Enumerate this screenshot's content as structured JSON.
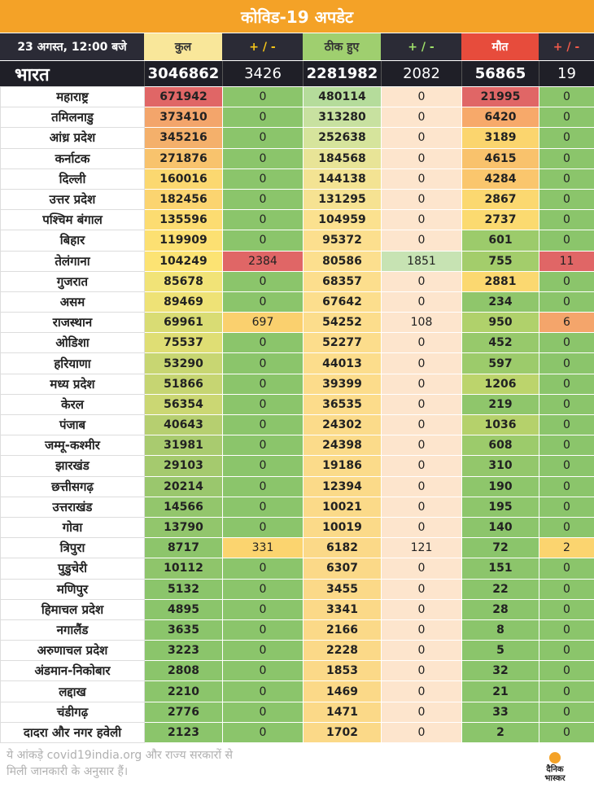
{
  "title": "कोविड-19 अपडेट",
  "header": {
    "date": "23 अगस्त, 12:00 बजे",
    "total": "कुल",
    "pm1": "+ / -",
    "recovered": "ठीक हुए",
    "pm2": "+ / -",
    "deaths": "मौत",
    "pm3": "+ / -"
  },
  "india": {
    "name": "भारत",
    "total": "3046862",
    "total_delta": "3426",
    "recovered": "2281982",
    "recovered_delta": "2082",
    "deaths": "56865",
    "deaths_delta": "19"
  },
  "rows": [
    {
      "state": "महाराष्ट्र",
      "total": "671942",
      "td": "0",
      "rec": "480114",
      "rd": "0",
      "death": "21995",
      "dd": "0",
      "ct": "#e06666",
      "ctd": "#8bc56b",
      "cr": "#b5dc9b",
      "crd": "#fde5cd",
      "cde": "#e06666",
      "cdd": "#8bc56b"
    },
    {
      "state": "तमिलनाडु",
      "total": "373410",
      "td": "0",
      "rec": "313280",
      "rd": "0",
      "death": "6420",
      "dd": "0",
      "ct": "#f3a56b",
      "ctd": "#8bc56b",
      "cr": "#c8e1a0",
      "crd": "#fde5cd",
      "cde": "#f7a96a",
      "cdd": "#8bc56b"
    },
    {
      "state": "आंध्र प्रदेश",
      "total": "345216",
      "td": "0",
      "rec": "252638",
      "rd": "0",
      "death": "3189",
      "dd": "0",
      "ct": "#f4b06b",
      "ctd": "#8bc56b",
      "cr": "#d6e49c",
      "crd": "#fde5cd",
      "cde": "#fbd56e",
      "cdd": "#8bc56b"
    },
    {
      "state": "कर्नाटक",
      "total": "271876",
      "td": "0",
      "rec": "184568",
      "rd": "0",
      "death": "4615",
      "dd": "0",
      "ct": "#f8c36d",
      "ctd": "#8bc56b",
      "cr": "#e8e497",
      "crd": "#fde5cd",
      "cde": "#f9c26c",
      "cdd": "#8bc56b"
    },
    {
      "state": "दिल्ली",
      "total": "160016",
      "td": "0",
      "rec": "144138",
      "rd": "0",
      "death": "4284",
      "dd": "0",
      "ct": "#fbd870",
      "ctd": "#8bc56b",
      "cr": "#f3e393",
      "crd": "#fde5cd",
      "cde": "#fac66d",
      "cdd": "#8bc56b"
    },
    {
      "state": "उत्तर प्रदेश",
      "total": "182456",
      "td": "0",
      "rec": "131295",
      "rd": "0",
      "death": "2867",
      "dd": "0",
      "ct": "#fbd470",
      "ctd": "#8bc56b",
      "cr": "#f6e292",
      "crd": "#fde5cd",
      "cde": "#fbd870",
      "cdd": "#8bc56b"
    },
    {
      "state": "पश्चिम बंगाल",
      "total": "135596",
      "td": "0",
      "rec": "104959",
      "rd": "0",
      "death": "2737",
      "dd": "0",
      "ct": "#fcdc71",
      "ctd": "#8bc56b",
      "cr": "#fbe18f",
      "crd": "#fde5cd",
      "cde": "#fbda70",
      "cdd": "#8bc56b"
    },
    {
      "state": "बिहार",
      "total": "119909",
      "td": "0",
      "rec": "95372",
      "rd": "0",
      "death": "601",
      "dd": "0",
      "ct": "#fce072",
      "ctd": "#8bc56b",
      "cr": "#fcdf8e",
      "crd": "#fde5cd",
      "cde": "#9ccb6b",
      "cdd": "#8bc56b"
    },
    {
      "state": "तेलंगाना",
      "total": "104249",
      "td": "2384",
      "rec": "80586",
      "rd": "1851",
      "death": "755",
      "dd": "11",
      "ct": "#fce373",
      "ctd": "#e06666",
      "cr": "#fcdf8e",
      "crd": "#c7e3b3",
      "cde": "#a3cd6b",
      "cdd": "#e06666"
    },
    {
      "state": "गुजरात",
      "total": "85678",
      "td": "0",
      "rec": "68357",
      "rd": "0",
      "death": "2881",
      "dd": "0",
      "ct": "#f1e377",
      "ctd": "#8bc56b",
      "cr": "#fcde8d",
      "crd": "#fde5cd",
      "cde": "#fbd870",
      "cdd": "#8bc56b"
    },
    {
      "state": "असम",
      "total": "89469",
      "td": "0",
      "rec": "67642",
      "rd": "0",
      "death": "234",
      "dd": "0",
      "ct": "#eee276",
      "ctd": "#8bc56b",
      "cr": "#fcde8d",
      "crd": "#fde5cd",
      "cde": "#8fc66b",
      "cdd": "#8bc56b"
    },
    {
      "state": "राजस्थान",
      "total": "69961",
      "td": "697",
      "rec": "54252",
      "rd": "108",
      "death": "950",
      "dd": "6",
      "ct": "#d9dc74",
      "ctd": "#fad06e",
      "cr": "#fcdd8c",
      "crd": "#fde5cd",
      "cde": "#b0d16b",
      "cdd": "#f4a56b"
    },
    {
      "state": "ओडिशा",
      "total": "75537",
      "td": "0",
      "rec": "52277",
      "rd": "0",
      "death": "452",
      "dd": "0",
      "ct": "#dfde74",
      "ctd": "#8bc56b",
      "cr": "#fcdd8c",
      "crd": "#fde5cd",
      "cde": "#97c96b",
      "cdd": "#8bc56b"
    },
    {
      "state": "हरियाणा",
      "total": "53290",
      "td": "0",
      "rec": "44013",
      "rd": "0",
      "death": "597",
      "dd": "0",
      "ct": "#c8d672",
      "ctd": "#8bc56b",
      "cr": "#fcdd8c",
      "crd": "#fde5cd",
      "cde": "#9ccb6b",
      "cdd": "#8bc56b"
    },
    {
      "state": "मध्य प्रदेश",
      "total": "51866",
      "td": "0",
      "rec": "39399",
      "rd": "0",
      "death": "1206",
      "dd": "0",
      "ct": "#c6d572",
      "ctd": "#8bc56b",
      "cr": "#fcdc8b",
      "crd": "#fde5cd",
      "cde": "#bcd46c",
      "cdd": "#8bc56b"
    },
    {
      "state": "केरल",
      "total": "56354",
      "td": "0",
      "rec": "36535",
      "rd": "0",
      "death": "219",
      "dd": "0",
      "ct": "#cbd773",
      "ctd": "#8bc56b",
      "cr": "#fcdc8b",
      "crd": "#fde5cd",
      "cde": "#8fc66b",
      "cdd": "#8bc56b"
    },
    {
      "state": "पंजाब",
      "total": "40643",
      "td": "0",
      "rec": "24302",
      "rd": "0",
      "death": "1036",
      "dd": "0",
      "ct": "#b6cf70",
      "ctd": "#8bc56b",
      "cr": "#fbdb8a",
      "crd": "#fde5cd",
      "cde": "#b5d16b",
      "cdd": "#8bc56b"
    },
    {
      "state": "जम्मू-कश्मीर",
      "total": "31981",
      "td": "0",
      "rec": "24398",
      "rd": "0",
      "death": "608",
      "dd": "0",
      "ct": "#a9cb6f",
      "ctd": "#8bc56b",
      "cr": "#fbdb8a",
      "crd": "#fde5cd",
      "cde": "#9ccb6b",
      "cdd": "#8bc56b"
    },
    {
      "state": "झारखंड",
      "total": "29103",
      "td": "0",
      "rec": "19186",
      "rd": "0",
      "death": "310",
      "dd": "0",
      "ct": "#a5ca6e",
      "ctd": "#8bc56b",
      "cr": "#fbdb8a",
      "crd": "#fde5cd",
      "cde": "#93c76b",
      "cdd": "#8bc56b"
    },
    {
      "state": "छत्तीसगढ़",
      "total": "20214",
      "td": "0",
      "rec": "12394",
      "rd": "0",
      "death": "190",
      "dd": "0",
      "ct": "#9ac76d",
      "ctd": "#8bc56b",
      "cr": "#fbda89",
      "crd": "#fde5cd",
      "cde": "#8ec66b",
      "cdd": "#8bc56b"
    },
    {
      "state": "उत्तराखंड",
      "total": "14566",
      "td": "0",
      "rec": "10021",
      "rd": "0",
      "death": "195",
      "dd": "0",
      "ct": "#93c66c",
      "ctd": "#8bc56b",
      "cr": "#fbda89",
      "crd": "#fde5cd",
      "cde": "#8ec66b",
      "cdd": "#8bc56b"
    },
    {
      "state": "गोवा",
      "total": "13790",
      "td": "0",
      "rec": "10019",
      "rd": "0",
      "death": "140",
      "dd": "0",
      "ct": "#92c66c",
      "ctd": "#8bc56b",
      "cr": "#fbda89",
      "crd": "#fde5cd",
      "cde": "#8cc56b",
      "cdd": "#8bc56b"
    },
    {
      "state": "त्रिपुरा",
      "total": "8717",
      "td": "331",
      "rec": "6182",
      "rd": "121",
      "death": "72",
      "dd": "2",
      "ct": "#8dc56b",
      "ctd": "#fbd46f",
      "cr": "#fbd988",
      "crd": "#fde5cd",
      "cde": "#8bc56b",
      "cdd": "#fbd46f"
    },
    {
      "state": "पुडुचेरी",
      "total": "10112",
      "td": "0",
      "rec": "6307",
      "rd": "0",
      "death": "151",
      "dd": "0",
      "ct": "#8fc56b",
      "ctd": "#8bc56b",
      "cr": "#fbd988",
      "crd": "#fde5cd",
      "cde": "#8cc56b",
      "cdd": "#8bc56b"
    },
    {
      "state": "मणिपुर",
      "total": "5132",
      "td": "0",
      "rec": "3455",
      "rd": "0",
      "death": "22",
      "dd": "0",
      "ct": "#8bc56b",
      "ctd": "#8bc56b",
      "cr": "#fbd988",
      "crd": "#fde5cd",
      "cde": "#8bc56b",
      "cdd": "#8bc56b"
    },
    {
      "state": "हिमाचल प्रदेश",
      "total": "4895",
      "td": "0",
      "rec": "3341",
      "rd": "0",
      "death": "28",
      "dd": "0",
      "ct": "#8bc56b",
      "ctd": "#8bc56b",
      "cr": "#fbd988",
      "crd": "#fde5cd",
      "cde": "#8bc56b",
      "cdd": "#8bc56b"
    },
    {
      "state": "नगालैंड",
      "total": "3635",
      "td": "0",
      "rec": "2166",
      "rd": "0",
      "death": "8",
      "dd": "0",
      "ct": "#8bc56b",
      "ctd": "#8bc56b",
      "cr": "#fbd988",
      "crd": "#fde5cd",
      "cde": "#8bc56b",
      "cdd": "#8bc56b"
    },
    {
      "state": "अरुणाचल प्रदेश",
      "total": "3223",
      "td": "0",
      "rec": "2228",
      "rd": "0",
      "death": "5",
      "dd": "0",
      "ct": "#8bc56b",
      "ctd": "#8bc56b",
      "cr": "#fbd988",
      "crd": "#fde5cd",
      "cde": "#8bc56b",
      "cdd": "#8bc56b"
    },
    {
      "state": "अंडमान-निकोबार",
      "total": "2808",
      "td": "0",
      "rec": "1853",
      "rd": "0",
      "death": "32",
      "dd": "0",
      "ct": "#8bc56b",
      "ctd": "#8bc56b",
      "cr": "#fbd988",
      "crd": "#fde5cd",
      "cde": "#8bc56b",
      "cdd": "#8bc56b"
    },
    {
      "state": "लद्दाख",
      "total": "2210",
      "td": "0",
      "rec": "1469",
      "rd": "0",
      "death": "21",
      "dd": "0",
      "ct": "#8bc56b",
      "ctd": "#8bc56b",
      "cr": "#fbd988",
      "crd": "#fde5cd",
      "cde": "#8bc56b",
      "cdd": "#8bc56b"
    },
    {
      "state": "चंडीगढ़",
      "total": "2776",
      "td": "0",
      "rec": "1471",
      "rd": "0",
      "death": "33",
      "dd": "0",
      "ct": "#8bc56b",
      "ctd": "#8bc56b",
      "cr": "#fbd988",
      "crd": "#fde5cd",
      "cde": "#8bc56b",
      "cdd": "#8bc56b"
    },
    {
      "state": "दादरा और नगर हवेली",
      "total": "2123",
      "td": "0",
      "rec": "1702",
      "rd": "0",
      "death": "2",
      "dd": "0",
      "ct": "#8bc56b",
      "ctd": "#8bc56b",
      "cr": "#fbd988",
      "crd": "#fde5cd",
      "cde": "#8bc56b",
      "cdd": "#8bc56b"
    }
  ],
  "footer": {
    "note_line1": "ये आंकड़े covid19india.org और राज्य सरकारों से",
    "note_line2": "मिली जानकारी के अनुसार हैं।",
    "logo_line1": "दैनिक",
    "logo_line2": "भास्कर"
  }
}
